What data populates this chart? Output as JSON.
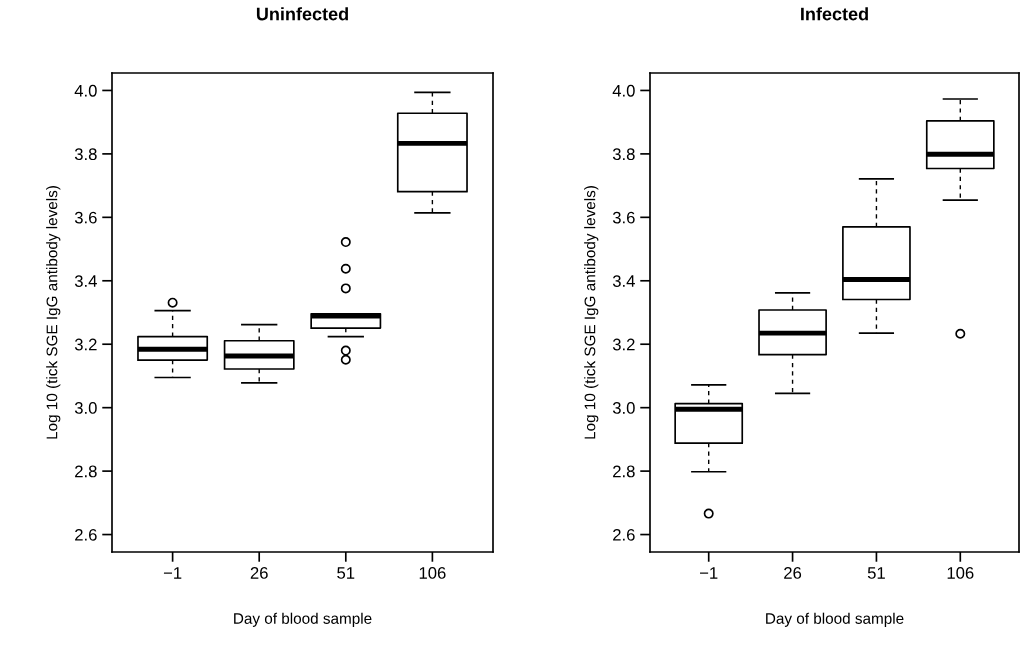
{
  "chart_data": [
    {
      "type": "box",
      "title": "Uninfected",
      "xlabel": "Day of blood sample",
      "ylabel": "Log 10 (tick SGE IgG antibody levels)",
      "categories": [
        "−1",
        "26",
        "51",
        "106"
      ],
      "ylim": [
        2.545,
        4.055
      ],
      "yticks": [
        {
          "value": 2.6,
          "label": "2.6"
        },
        {
          "value": 2.8,
          "label": "2.8"
        },
        {
          "value": 3.0,
          "label": "3.0"
        },
        {
          "value": 3.2,
          "label": "3.2"
        },
        {
          "value": 3.4,
          "label": "3.4"
        },
        {
          "value": 3.6,
          "label": "3.6"
        },
        {
          "value": 3.8,
          "label": "3.8"
        },
        {
          "value": 4.0,
          "label": "4.0"
        }
      ],
      "boxes": [
        {
          "low": 3.095,
          "q1": 3.15,
          "median": 3.184,
          "q3": 3.224,
          "high": 3.306,
          "outliers": [
            3.331
          ]
        },
        {
          "low": 3.078,
          "q1": 3.122,
          "median": 3.163,
          "q3": 3.211,
          "high": 3.262
        },
        {
          "low": 3.224,
          "q1": 3.251,
          "median": 3.289,
          "q3": 3.296,
          "high": 3.296,
          "outliers": [
            3.522,
            3.438,
            3.376,
            3.18,
            3.151
          ]
        },
        {
          "low": 3.614,
          "q1": 3.681,
          "median": 3.833,
          "q3": 3.928,
          "high": 3.994
        }
      ]
    },
    {
      "type": "box",
      "title": "Infected",
      "xlabel": "Day of blood sample",
      "ylabel": "Log 10 (tick SGE IgG antibody levels)",
      "categories": [
        "−1",
        "26",
        "51",
        "106"
      ],
      "ylim": [
        2.545,
        4.055
      ],
      "yticks": [
        {
          "value": 2.6,
          "label": "2.6"
        },
        {
          "value": 2.8,
          "label": "2.8"
        },
        {
          "value": 3.0,
          "label": "3.0"
        },
        {
          "value": 3.2,
          "label": "3.2"
        },
        {
          "value": 3.4,
          "label": "3.4"
        },
        {
          "value": 3.6,
          "label": "3.6"
        },
        {
          "value": 3.8,
          "label": "3.8"
        },
        {
          "value": 4.0,
          "label": "4.0"
        }
      ],
      "boxes": [
        {
          "low": 2.798,
          "q1": 2.888,
          "median": 2.995,
          "q3": 3.013,
          "high": 3.072,
          "outliers": [
            2.666
          ]
        },
        {
          "low": 3.045,
          "q1": 3.167,
          "median": 3.235,
          "q3": 3.308,
          "high": 3.362
        },
        {
          "low": 3.235,
          "q1": 3.341,
          "median": 3.404,
          "q3": 3.57,
          "high": 3.721
        },
        {
          "low": 3.654,
          "q1": 3.754,
          "median": 3.799,
          "q3": 3.904,
          "high": 3.973,
          "outliers": [
            3.233
          ]
        }
      ]
    }
  ]
}
